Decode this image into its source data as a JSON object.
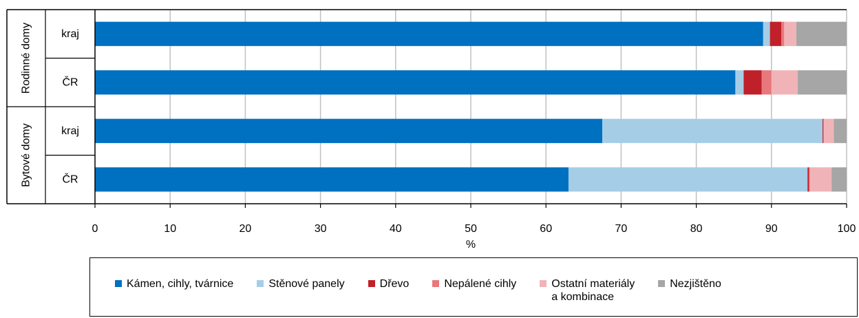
{
  "chart_data": {
    "type": "bar",
    "orientation": "horizontal",
    "stacked": true,
    "groups": [
      {
        "label": "Rodinné domy",
        "categories": [
          "kraj",
          "ČR"
        ]
      },
      {
        "label": "Bytové domy",
        "categories": [
          "kraj",
          "ČR"
        ]
      }
    ],
    "series": [
      {
        "name": "Kámen, cihly, tvárnice",
        "color": "#0070c0",
        "values": [
          88.9,
          85.2,
          67.5,
          63.0
        ]
      },
      {
        "name": "Stěnové panely",
        "color": "#a6cde6",
        "values": [
          0.9,
          1.1,
          29.3,
          31.8
        ]
      },
      {
        "name": "Dřevo",
        "color": "#c0202a",
        "values": [
          1.5,
          2.4,
          0.1,
          0.2
        ]
      },
      {
        "name": "Nepálené cihly",
        "color": "#e8787c",
        "values": [
          0.4,
          1.3,
          0.1,
          0.1
        ]
      },
      {
        "name": "Ostatní materiály\na kombinace",
        "color": "#f0b4b8",
        "values": [
          1.6,
          3.5,
          1.3,
          2.9
        ]
      },
      {
        "name": "Nezjištěno",
        "color": "#a6a6a6",
        "values": [
          6.7,
          6.5,
          1.7,
          2.0
        ]
      }
    ],
    "xlabel": "%",
    "xlim": [
      0,
      100
    ],
    "xticks": [
      0,
      10,
      20,
      30,
      40,
      50,
      60,
      70,
      80,
      90,
      100
    ],
    "grid": true,
    "legend_position": "bottom"
  }
}
